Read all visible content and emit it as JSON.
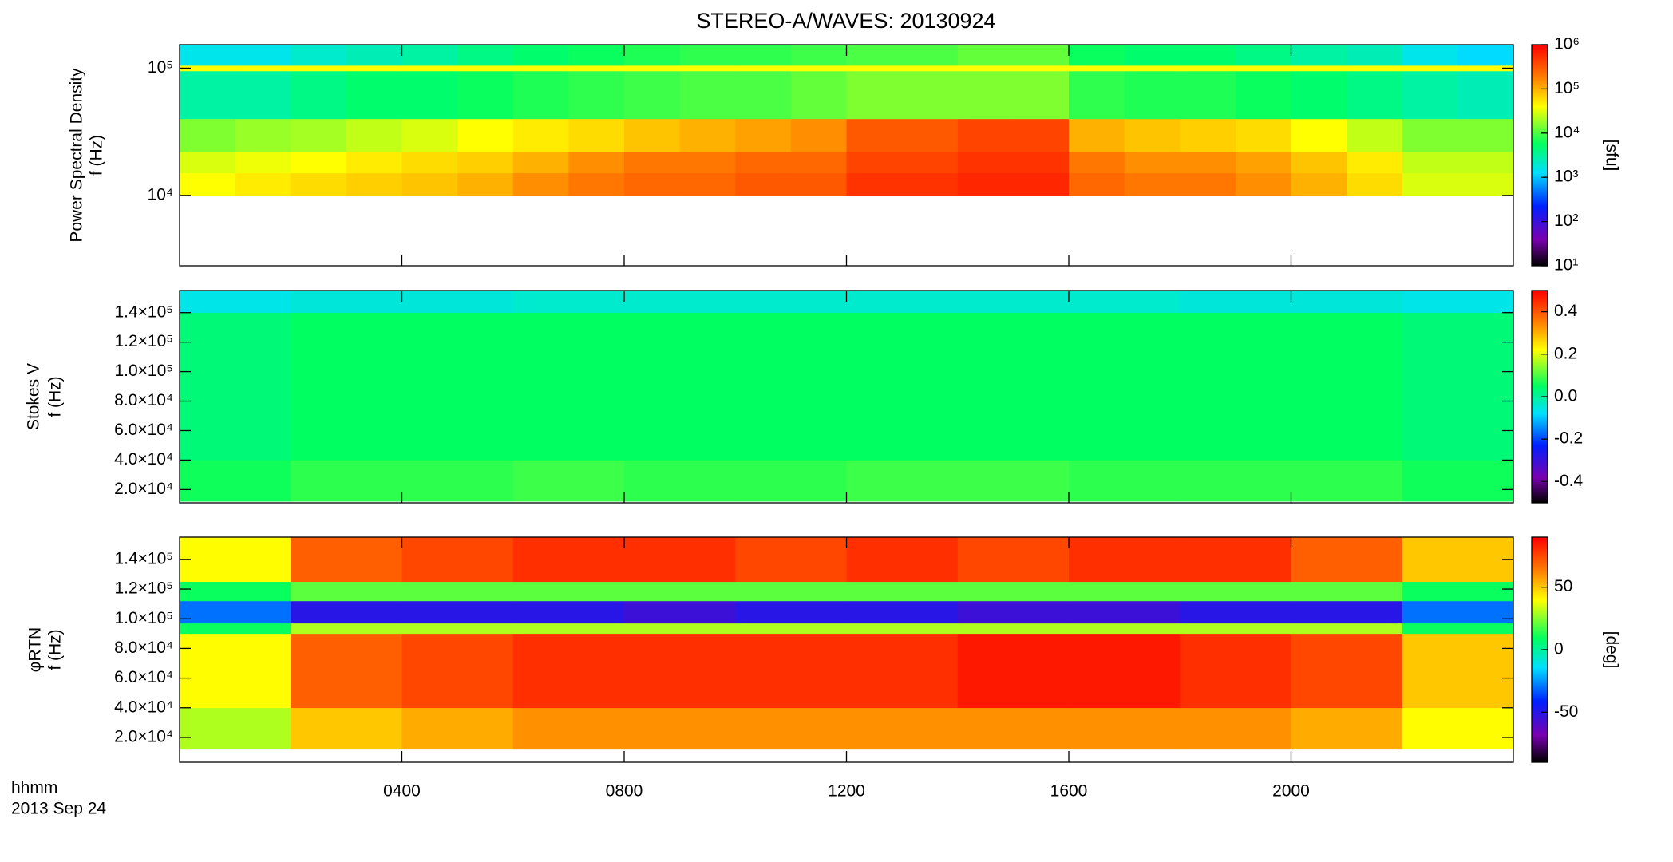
{
  "chart_data": [
    {
      "type": "heatmap",
      "title": "STEREO-A/WAVES: 20130924",
      "ylabel": [
        "Power Spectral Density",
        "f (Hz)"
      ],
      "ylog": true,
      "xlim": [
        0,
        24
      ],
      "ylim": [
        2800,
        153000
      ],
      "yticks": [
        {
          "value": 10000,
          "label": "10⁴"
        },
        {
          "value": 100000,
          "label": "10⁵"
        }
      ],
      "xbins": [
        0,
        1,
        2,
        3,
        4,
        5,
        6,
        7,
        8,
        9,
        10,
        11,
        12,
        13,
        14,
        15,
        16,
        17,
        18,
        19,
        20,
        21,
        22,
        23,
        24
      ],
      "ybins": [
        10000,
        15000,
        22000,
        40000,
        95000,
        105000,
        153000
      ],
      "values": [
        [
          40000,
          50000,
          60000,
          70000,
          80000,
          100000,
          150000,
          200000,
          250000,
          250000,
          300000,
          300000,
          500000,
          500000,
          600000,
          600000,
          250000,
          200000,
          200000,
          150000,
          100000,
          60000,
          30000,
          30000
        ],
        [
          30000,
          35000,
          40000,
          50000,
          60000,
          70000,
          100000,
          150000,
          200000,
          200000,
          250000,
          250000,
          400000,
          400000,
          500000,
          500000,
          200000,
          150000,
          150000,
          120000,
          80000,
          50000,
          25000,
          25000
        ],
        [
          15000,
          18000,
          20000,
          25000,
          30000,
          40000,
          50000,
          60000,
          80000,
          100000,
          120000,
          150000,
          300000,
          300000,
          400000,
          400000,
          100000,
          80000,
          70000,
          60000,
          40000,
          25000,
          15000,
          15000
        ],
        [
          3000,
          3000,
          4000,
          5000,
          5000,
          6000,
          7000,
          8000,
          9000,
          10000,
          10000,
          12000,
          15000,
          15000,
          15000,
          15000,
          8000,
          7000,
          7000,
          6000,
          5000,
          4000,
          3000,
          2500
        ],
        [
          40000,
          40000,
          40000,
          40000,
          40000,
          40000,
          40000,
          40000,
          40000,
          40000,
          40000,
          40000,
          40000,
          40000,
          40000,
          40000,
          40000,
          40000,
          40000,
          40000,
          40000,
          40000,
          40000,
          40000
        ],
        [
          1500,
          1500,
          2000,
          2500,
          3000,
          4000,
          5000,
          6000,
          7000,
          8000,
          8000,
          9000,
          10000,
          10000,
          12000,
          12000,
          6000,
          5000,
          5000,
          4000,
          3000,
          2500,
          1500,
          1200
        ]
      ],
      "colorbar": {
        "log": true,
        "lim": [
          10,
          1000000
        ],
        "label": "[sfu]",
        "ticks": [
          {
            "value": 10,
            "label": "10¹"
          },
          {
            "value": 100,
            "label": "10²"
          },
          {
            "value": 1000,
            "label": "10³"
          },
          {
            "value": 10000,
            "label": "10⁴"
          },
          {
            "value": 100000,
            "label": "10⁵"
          },
          {
            "value": 1000000,
            "label": "10⁶"
          }
        ]
      }
    },
    {
      "type": "heatmap",
      "ylabel": [
        "Stokes V",
        "f (Hz)"
      ],
      "ylog": false,
      "xlim": [
        0,
        24
      ],
      "ylim": [
        11000,
        155000
      ],
      "yticks": [
        {
          "value": 20000,
          "label": "2.0×10⁴"
        },
        {
          "value": 40000,
          "label": "4.0×10⁴"
        },
        {
          "value": 60000,
          "label": "6.0×10⁴"
        },
        {
          "value": 80000,
          "label": "8.0×10⁴"
        },
        {
          "value": 100000,
          "label": "1.0×10⁵"
        },
        {
          "value": 120000,
          "label": "1.2×10⁵"
        },
        {
          "value": 140000,
          "label": "1.4×10⁵"
        }
      ],
      "xbins": [
        0,
        2,
        4,
        6,
        8,
        10,
        12,
        14,
        16,
        18,
        20,
        22,
        24
      ],
      "ybins": [
        12000,
        40000,
        140000,
        155000
      ],
      "values": [
        [
          0.06,
          0.08,
          0.08,
          0.09,
          0.08,
          0.08,
          0.09,
          0.09,
          0.08,
          0.08,
          0.08,
          0.06
        ],
        [
          0.03,
          0.05,
          0.05,
          0.05,
          0.05,
          0.05,
          0.05,
          0.05,
          0.05,
          0.05,
          0.05,
          0.03
        ],
        [
          -0.06,
          -0.05,
          -0.05,
          -0.04,
          -0.04,
          -0.04,
          -0.04,
          -0.04,
          -0.04,
          -0.05,
          -0.05,
          -0.06
        ]
      ],
      "colorbar": {
        "log": false,
        "lim": [
          -0.5,
          0.5
        ],
        "ticks": [
          -0.4,
          -0.2,
          {
            "value": 0,
            "label": "0.0"
          },
          0.2,
          0.4
        ]
      }
    },
    {
      "type": "heatmap",
      "ylabel": [
        "φRTN",
        "f (Hz)"
      ],
      "ylog": false,
      "xlim": [
        0,
        24
      ],
      "ylim": [
        3300,
        155000
      ],
      "yticks": [
        {
          "value": 20000,
          "label": "2.0×10⁴"
        },
        {
          "value": 40000,
          "label": "4.0×10⁴"
        },
        {
          "value": 60000,
          "label": "6.0×10⁴"
        },
        {
          "value": 80000,
          "label": "8.0×10⁴"
        },
        {
          "value": 100000,
          "label": "1.0×10⁵"
        },
        {
          "value": 120000,
          "label": "1.2×10⁵"
        },
        {
          "value": 140000,
          "label": "1.4×10⁵"
        }
      ],
      "xticks": [
        {
          "value": 4,
          "label": "0400"
        },
        {
          "value": 8,
          "label": "0800"
        },
        {
          "value": 12,
          "label": "1200"
        },
        {
          "value": 16,
          "label": "1600"
        },
        {
          "value": 20,
          "label": "2000"
        }
      ],
      "xlabel": "hhmm",
      "date": "2013 Sep 24",
      "xbins": [
        0,
        2,
        4,
        6,
        8,
        10,
        12,
        14,
        16,
        18,
        20,
        22,
        24
      ],
      "ybins": [
        12000,
        40000,
        90000,
        97000,
        112000,
        125000,
        155000
      ],
      "values": [
        [
          30,
          50,
          55,
          60,
          60,
          60,
          60,
          60,
          60,
          60,
          55,
          40
        ],
        [
          40,
          70,
          75,
          80,
          80,
          80,
          80,
          85,
          85,
          80,
          75,
          50
        ],
        [
          10,
          30,
          30,
          30,
          30,
          30,
          30,
          30,
          30,
          30,
          30,
          10
        ],
        [
          -30,
          -50,
          -50,
          -50,
          -55,
          -50,
          -50,
          -55,
          -55,
          -50,
          -50,
          -30
        ],
        [
          10,
          20,
          20,
          20,
          20,
          20,
          20,
          20,
          20,
          20,
          20,
          10
        ],
        [
          40,
          70,
          75,
          80,
          80,
          75,
          80,
          75,
          80,
          80,
          70,
          50
        ]
      ],
      "colorbar": {
        "log": false,
        "lim": [
          -90,
          90
        ],
        "label": "[deg]",
        "ticks": [
          -50,
          0,
          50
        ]
      }
    }
  ]
}
